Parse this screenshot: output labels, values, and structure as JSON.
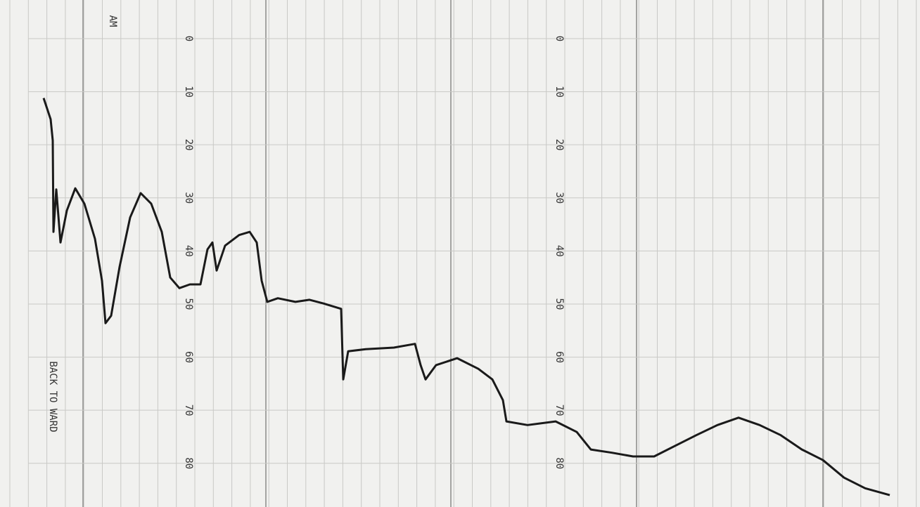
{
  "chart_data": {
    "type": "line",
    "annotations": [
      "AM",
      "BACK TO WARD"
    ],
    "xlim": [
      0,
      1308
    ],
    "ylim": [
      -6,
      87
    ],
    "yticks": [
      0,
      10,
      20,
      30,
      40,
      50,
      60,
      70,
      80
    ],
    "grid": true,
    "series": [
      {
        "color": "#1a1a1a",
        "x": [
          62,
          72,
          75,
          76,
          80,
          86,
          95,
          107,
          120,
          135,
          145,
          150,
          158,
          170,
          185,
          200,
          215,
          230,
          242,
          255,
          270,
          285,
          295,
          302,
          308,
          320,
          340,
          355,
          365,
          372,
          380,
          395,
          420,
          440,
          460,
          485,
          488,
          495,
          520,
          560,
          590,
          598,
          605,
          620,
          650,
          680,
          700,
          715,
          720,
          750,
          790,
          820,
          840,
          870,
          900,
          930,
          960,
          990,
          1020,
          1050,
          1080,
          1110,
          1140,
          1170,
          1200,
          1230,
          1265
        ],
        "values": [
          11.2,
          15.2,
          19.2,
          36.4,
          28.4,
          38.4,
          32.4,
          28.2,
          31.1,
          37.7,
          45.6,
          53.6,
          52.2,
          43.0,
          33.7,
          29.1,
          31.1,
          36.4,
          45.0,
          47.0,
          46.3,
          46.3,
          39.7,
          38.4,
          43.7,
          39.0,
          37.0,
          36.4,
          38.4,
          45.6,
          49.6,
          48.9,
          49.6,
          49.2,
          49.9,
          50.9,
          64.2,
          58.9,
          58.5,
          58.2,
          57.5,
          61.5,
          64.2,
          61.5,
          60.2,
          62.2,
          64.2,
          68.1,
          72.1,
          72.8,
          72.1,
          74.1,
          77.4,
          78.0,
          78.7,
          78.7,
          76.7,
          74.7,
          72.8,
          71.4,
          72.8,
          74.7,
          77.4,
          79.4,
          82.7,
          84.7,
          86.0
        ]
      }
    ]
  }
}
